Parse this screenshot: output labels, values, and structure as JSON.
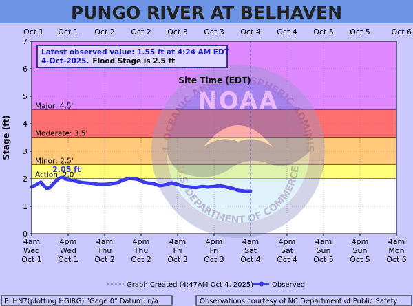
{
  "colors": {
    "page_bg": "#c8c8ff",
    "title_bg": "#6e94e6",
    "major_band": "#dd88ff",
    "moderate_band": "#ff6e6e",
    "minor_band": "#ffc878",
    "action_band": "#ffff7a",
    "observed_line": "#3c3cee",
    "created_line": "#4a4acc",
    "summary_text": "#1a1acc"
  },
  "chart_data": {
    "type": "line",
    "title": "PUNGO RIVER AT BELHAVEN",
    "xlabel": "Site Time (EDT)",
    "ylabel": "Stage (ft)",
    "ylim": [
      0,
      7
    ],
    "y_ticks": [
      "0",
      "1",
      "2",
      "3",
      "4",
      "5",
      "6",
      "7"
    ],
    "x_range_hours": [
      0,
      120
    ],
    "grid": true,
    "top_date_labels": [
      "Oct 1",
      "Oct 1",
      "Oct 2",
      "Oct 2",
      "Oct 3",
      "Oct 3",
      "Oct 4",
      "Oct 4",
      "Oct 5",
      "Oct 5",
      "Oct 6"
    ],
    "bottom_ticks": [
      {
        "time": "4am",
        "day": "Wed",
        "date": "Oct 1"
      },
      {
        "time": "4pm",
        "day": "Wed",
        "date": "Oct 1"
      },
      {
        "time": "4am",
        "day": "Thu",
        "date": "Oct 2"
      },
      {
        "time": "4pm",
        "day": "Thu",
        "date": "Oct 2"
      },
      {
        "time": "4am",
        "day": "Fri",
        "date": "Oct 3"
      },
      {
        "time": "4pm",
        "day": "Fri",
        "date": "Oct 3"
      },
      {
        "time": "4am",
        "day": "Sat",
        "date": "Oct 4"
      },
      {
        "time": "4pm",
        "day": "Sat",
        "date": "Oct 4"
      },
      {
        "time": "4am",
        "day": "Sun",
        "date": "Oct 5"
      },
      {
        "time": "4pm",
        "day": "Sun",
        "date": "Oct 5"
      },
      {
        "time": "4am",
        "day": "Mon",
        "date": "Oct 6"
      }
    ],
    "flood_categories": [
      {
        "label": "Major: 4.5'",
        "from": 4.5,
        "to": 7,
        "color": "#dd88ff"
      },
      {
        "label": "Moderate: 3.5'",
        "from": 3.5,
        "to": 4.5,
        "color": "#ff6e6e"
      },
      {
        "label": "Minor: 2.5'",
        "from": 2.5,
        "to": 3.5,
        "color": "#ffc878"
      },
      {
        "label": "Action: 2.0'",
        "from": 2.0,
        "to": 2.5,
        "color": "#ffff7a"
      }
    ],
    "series": [
      {
        "name": "Observed",
        "x": [
          0,
          1,
          2,
          3,
          4,
          5,
          6,
          7,
          8,
          9,
          10,
          11,
          12,
          13,
          14,
          15,
          16,
          17,
          18,
          20,
          22,
          24,
          26,
          28,
          30,
          32,
          34,
          35,
          36,
          37,
          38,
          40,
          42,
          44,
          46,
          48,
          50,
          52,
          54,
          56,
          58,
          60,
          62,
          64,
          66,
          68,
          70,
          72
        ],
        "y": [
          1.7,
          1.75,
          1.82,
          1.88,
          1.75,
          1.65,
          1.68,
          1.8,
          1.92,
          2.02,
          2.05,
          2.0,
          1.98,
          1.95,
          1.93,
          1.9,
          1.88,
          1.86,
          1.85,
          1.83,
          1.8,
          1.8,
          1.82,
          1.85,
          1.95,
          2.02,
          2.0,
          1.98,
          1.92,
          1.88,
          1.85,
          1.83,
          1.75,
          1.78,
          1.85,
          1.8,
          1.72,
          1.7,
          1.68,
          1.72,
          1.7,
          1.72,
          1.75,
          1.7,
          1.65,
          1.58,
          1.55,
          1.55
        ]
      }
    ],
    "peak_annotation": "2.05 ft",
    "created_marker_hours": 72,
    "summary": {
      "line1": "Latest observed value: 1.55 ft at 4:24 AM EDT",
      "line2_blue": "4-Oct-2025.",
      "line2_black": "Flood Stage is 2.5 ft"
    },
    "legend": {
      "created": "Graph Created (4:47AM Oct 4, 2025)",
      "observed": "Observed"
    },
    "footer_left": "BLHN7(plotting HGIRG) \"Gage 0\" Datum: n/a",
    "footer_right": "Observations courtesy of NC Department of Public Safety",
    "watermark_text": "NATIONAL OCEANIC AND ATMOSPHERIC ADMINISTRATION",
    "watermark_bottom": "U.S. DEPARTMENT OF COMMERCE",
    "watermark_center": "NOAA"
  }
}
